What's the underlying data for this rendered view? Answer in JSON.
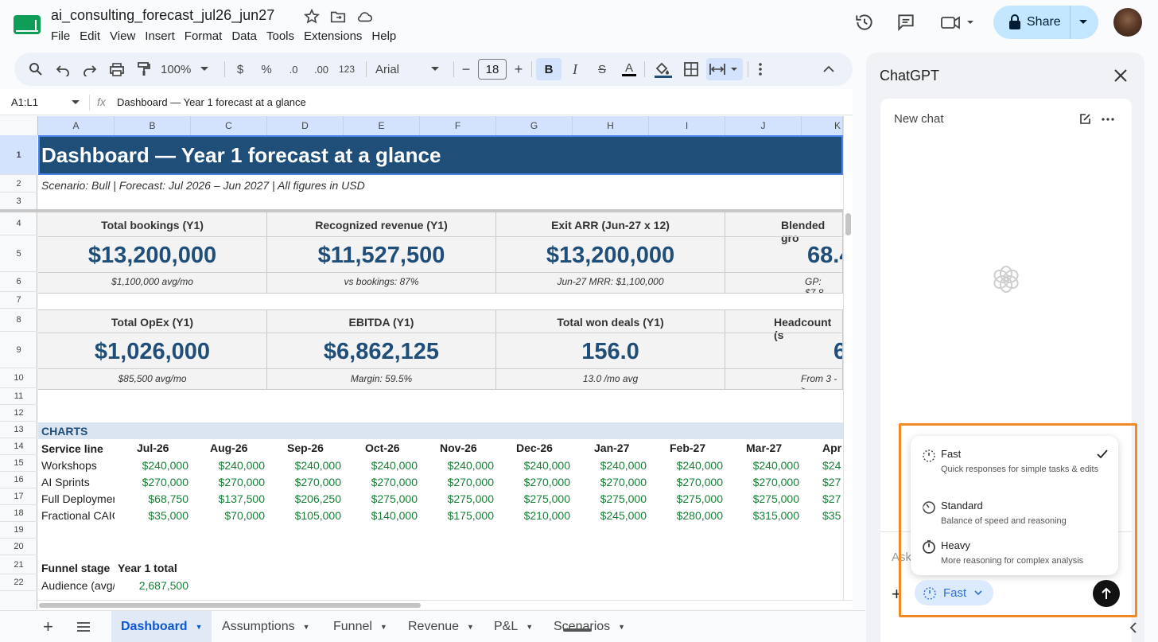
{
  "doc": {
    "title": "ai_consulting_forecast_jul26_jun27"
  },
  "menu": [
    "File",
    "Edit",
    "View",
    "Insert",
    "Format",
    "Data",
    "Tools",
    "Extensions",
    "Help"
  ],
  "share": {
    "label": "Share"
  },
  "toolbar": {
    "zoom": "100%",
    "currency": "$",
    "percent": "%",
    "dec_less": ".0",
    "dec_more": ".00",
    "format": "123",
    "font": "Arial",
    "font_size": "18",
    "minus": "−",
    "plus": "+",
    "bold": "B",
    "italic": "I",
    "strike": "S",
    "textcolor": "A"
  },
  "formula": {
    "namebox": "A1:L1",
    "fx": "fx",
    "content": "Dashboard  —  Year 1 forecast at a glance"
  },
  "columns": [
    "A",
    "B",
    "C",
    "D",
    "E",
    "F",
    "G",
    "H",
    "I",
    "J",
    "K"
  ],
  "rows": [
    "1",
    "2",
    "3",
    "4",
    "5",
    "6",
    "7",
    "8",
    "9",
    "10",
    "11",
    "12",
    "13",
    "14",
    "15",
    "16",
    "17",
    "18",
    "19",
    "20",
    "21",
    "22"
  ],
  "sheet": {
    "title": "Dashboard  —  Year 1 forecast at a glance",
    "subtitle": "Scenario: Bull   |   Forecast: Jul 2026 – Jun 2027   |   All figures in USD",
    "kpis_row1": [
      {
        "label": "Total bookings (Y1)",
        "value": "$13,200,000",
        "sub": "$1,100,000 avg/mo"
      },
      {
        "label": "Recognized revenue (Y1)",
        "value": "$11,527,500",
        "sub": "vs bookings: 87%"
      },
      {
        "label": "Exit ARR (Jun-27 x 12)",
        "value": "$13,200,000",
        "sub": "Jun-27 MRR: $1,100,000"
      },
      {
        "label": "Blended gro",
        "value": "68.4",
        "sub": "GP: $7,8"
      }
    ],
    "kpis_row2": [
      {
        "label": "Total OpEx (Y1)",
        "value": "$1,026,000",
        "sub": "$85,500 avg/mo"
      },
      {
        "label": "EBITDA (Y1)",
        "value": "$6,862,125",
        "sub": "Margin: 59.5%"
      },
      {
        "label": "Total won deals (Y1)",
        "value": "156.0",
        "sub": "13.0 /mo avg"
      },
      {
        "label": "Headcount (s",
        "value": "6",
        "sub": "From 3 ->"
      }
    ],
    "charts_header": "CHARTS",
    "service_header": "Service line",
    "months": [
      "Jul-26",
      "Aug-26",
      "Sep-26",
      "Oct-26",
      "Nov-26",
      "Dec-26",
      "Jan-27",
      "Feb-27",
      "Mar-27",
      "Apr"
    ],
    "service_rows": [
      {
        "name": "Workshops",
        "values": [
          "$240,000",
          "$240,000",
          "$240,000",
          "$240,000",
          "$240,000",
          "$240,000",
          "$240,000",
          "$240,000",
          "$240,000",
          "$24"
        ]
      },
      {
        "name": "AI Sprints",
        "values": [
          "$270,000",
          "$270,000",
          "$270,000",
          "$270,000",
          "$270,000",
          "$270,000",
          "$270,000",
          "$270,000",
          "$270,000",
          "$27"
        ]
      },
      {
        "name": "Full Deploymer",
        "values": [
          "$68,750",
          "$137,500",
          "$206,250",
          "$275,000",
          "$275,000",
          "$275,000",
          "$275,000",
          "$275,000",
          "$275,000",
          "$27"
        ]
      },
      {
        "name": "Fractional CAIC",
        "values": [
          "$35,000",
          "$70,000",
          "$105,000",
          "$140,000",
          "$175,000",
          "$210,000",
          "$245,000",
          "$280,000",
          "$315,000",
          "$35"
        ]
      }
    ],
    "funnel_header": [
      "Funnel stage",
      "Year 1 total"
    ],
    "funnel_rows": [
      {
        "name": "Audience (avg/",
        "value": "2,687,500"
      }
    ]
  },
  "tabs": [
    {
      "label": "Dashboard",
      "active": true
    },
    {
      "label": "Assumptions"
    },
    {
      "label": "Funnel"
    },
    {
      "label": "Revenue"
    },
    {
      "label": "P&L"
    },
    {
      "label": "Scenarios"
    }
  ],
  "panel": {
    "title": "ChatGPT",
    "new_chat": "New chat",
    "ask_placeholder": "Ask",
    "mode_label": "Fast",
    "options": [
      {
        "title": "Fast",
        "desc": "Quick responses for simple tasks & edits",
        "selected": true
      },
      {
        "title": "Standard",
        "desc": "Balance of speed and reasoning"
      },
      {
        "title": "Heavy",
        "desc": "More reasoning for complex analysis"
      }
    ]
  },
  "colors": {
    "banner": "#1f4e79",
    "kpi_value": "#1f4e79",
    "positive": "#188038",
    "share": "#c2e7ff",
    "highlight": "#f08a24"
  }
}
